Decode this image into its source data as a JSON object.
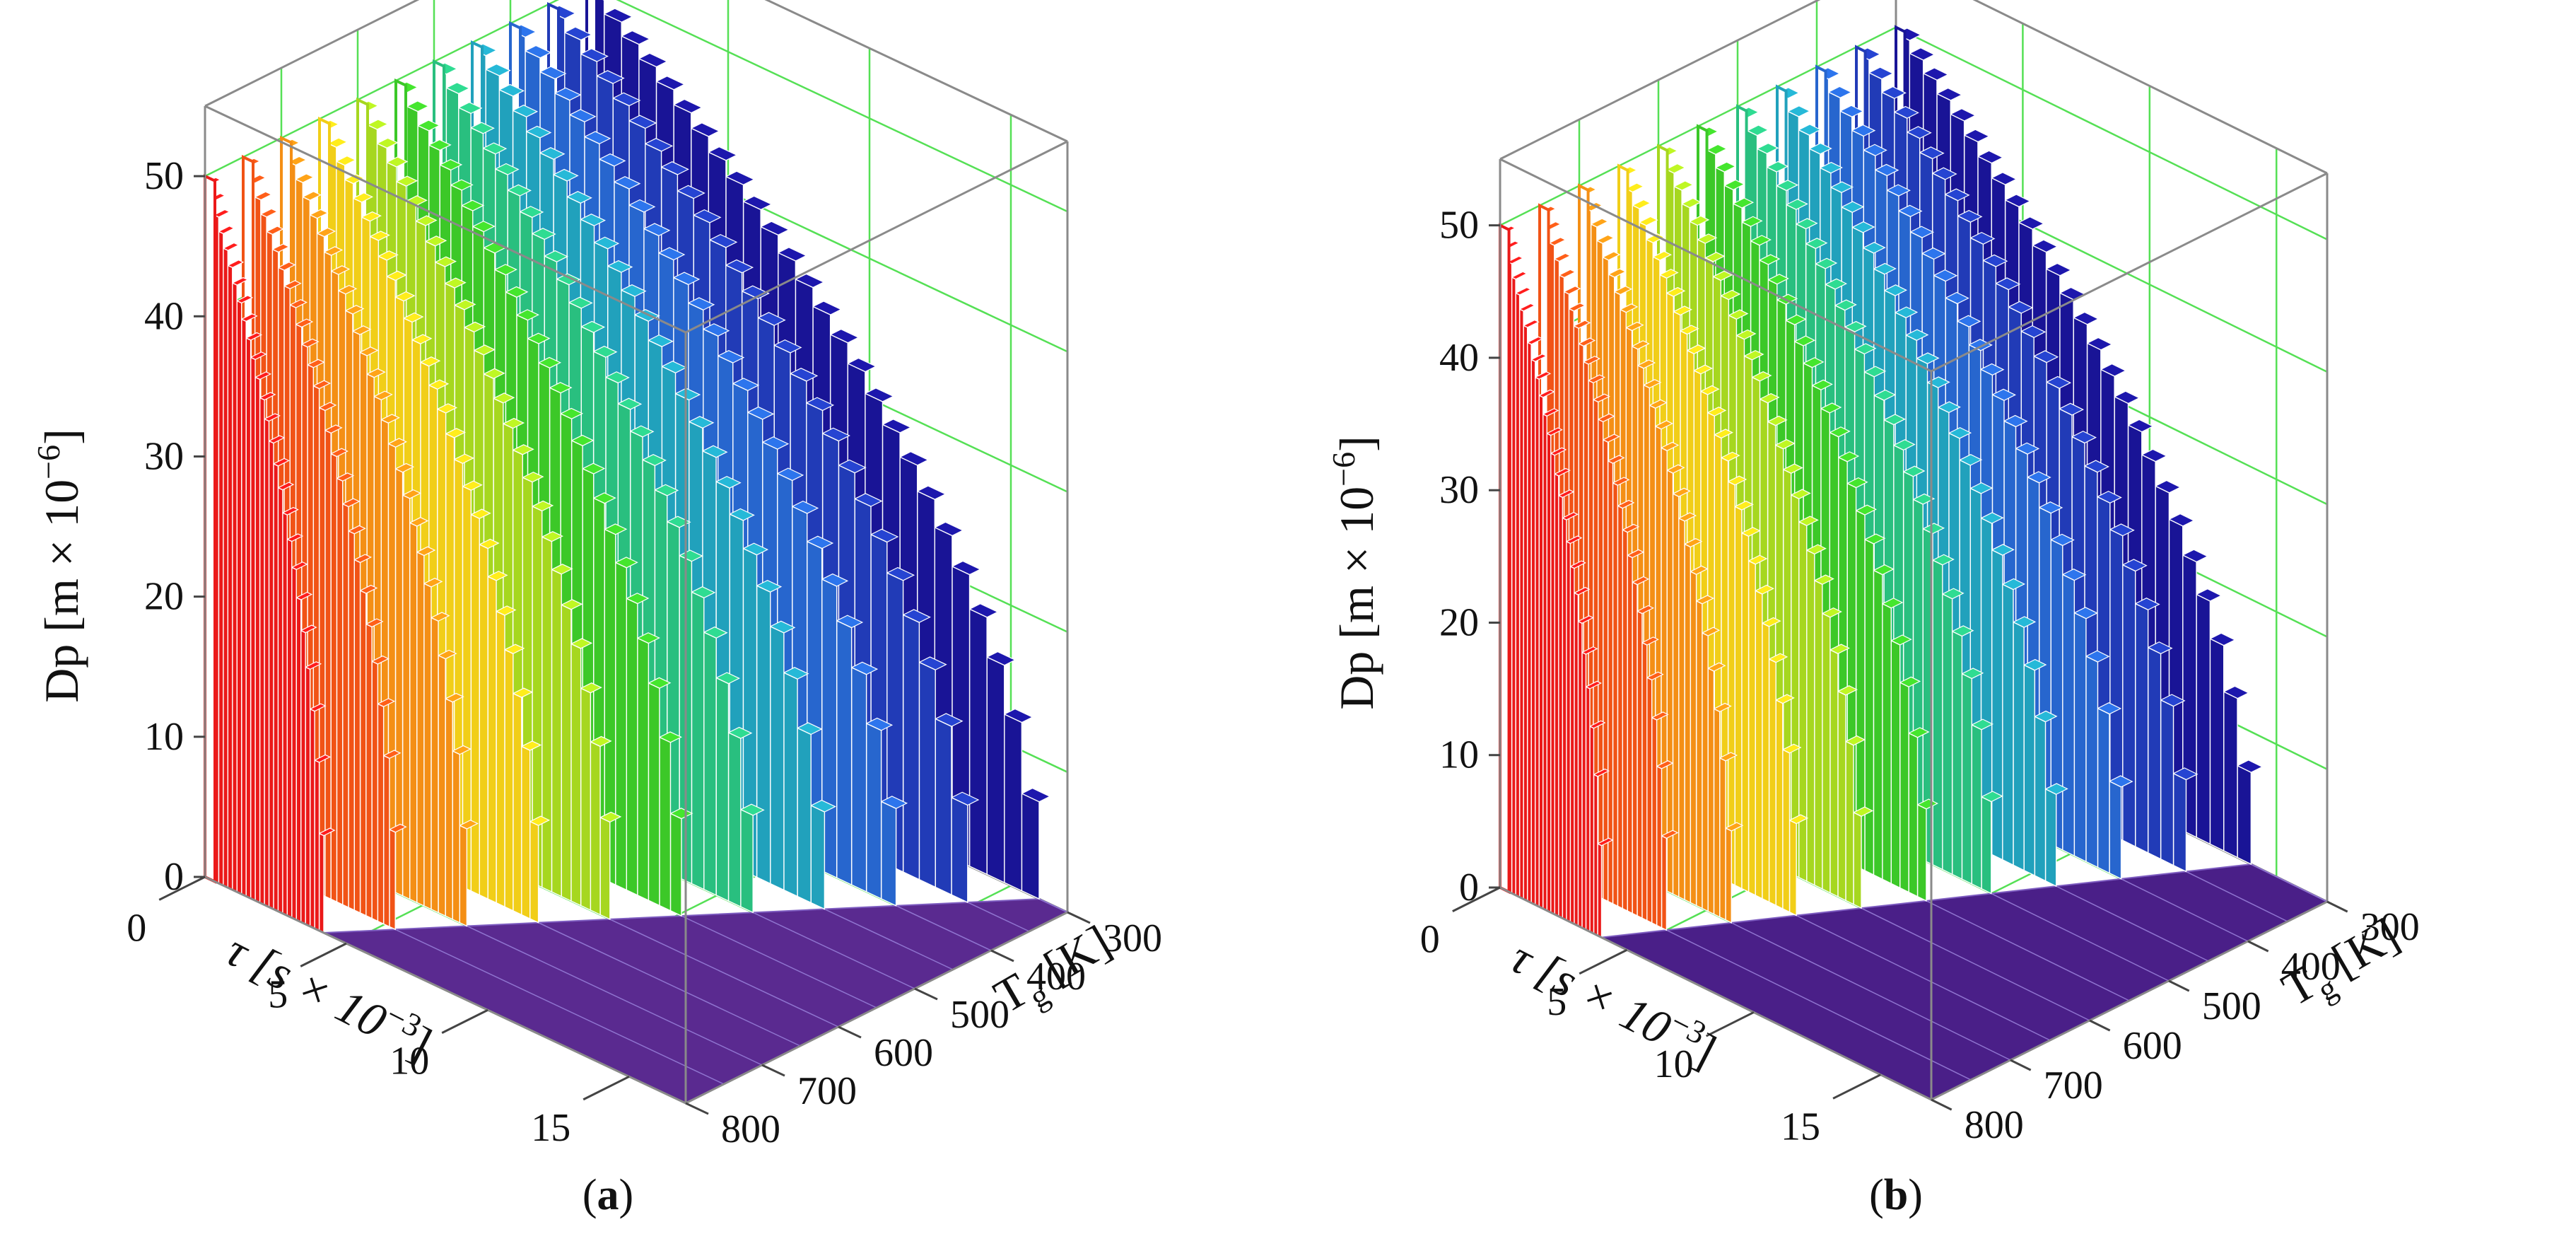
{
  "chart_data": [
    {
      "panel": "a",
      "type": "bar3d",
      "panel_label": {
        "open": "(",
        "letter": "a",
        "close": ")"
      },
      "zlabel": {
        "text": "Dp [m × 10",
        "sup": "−6",
        "close": "]"
      },
      "xlabel": {
        "text": "τ [s × 10",
        "sup": "−3",
        "close": "]"
      },
      "ylabel": {
        "main": "T",
        "sub": "g",
        "unit": " [K]"
      },
      "z_ticks": [
        "0",
        "10",
        "20",
        "30",
        "40",
        "50"
      ],
      "x_ticks": [
        "0",
        "5",
        "10",
        "15"
      ],
      "y_ticks": [
        "300",
        "400",
        "500",
        "600",
        "700",
        "800"
      ],
      "zlim": [
        0,
        55
      ],
      "tau_max_xlim": [
        0,
        17
      ],
      "temperature_range": [
        300,
        800
      ],
      "series_count": 11,
      "initial_diameter": 50,
      "evaporation_time_at_300K": 16.0,
      "evaporation_time_at_800K": 4.2,
      "floor_color": "#5a2a90"
    },
    {
      "panel": "b",
      "type": "bar3d",
      "panel_label": {
        "open": "(",
        "letter": "b",
        "close": ")"
      },
      "zlabel": {
        "text": "Dp [m × 10",
        "sup": "−6",
        "close": "]"
      },
      "xlabel": {
        "text": "τ [s × 10",
        "sup": "−3",
        "close": "]"
      },
      "ylabel": {
        "main": "T",
        "sub": "g",
        "unit": " [K]"
      },
      "z_ticks": [
        "0",
        "10",
        "20",
        "30",
        "40",
        "50"
      ],
      "x_ticks": [
        "0",
        "5",
        "10",
        "15"
      ],
      "y_ticks": [
        "300",
        "400",
        "500",
        "600",
        "700",
        "800"
      ],
      "zlim": [
        0,
        55
      ],
      "tau_max_xlim": [
        0,
        17
      ],
      "temperature_range": [
        300,
        800
      ],
      "series_count": 11,
      "initial_diameter": 50,
      "evaporation_time_at_300K": 14.0,
      "evaporation_time_at_800K": 4.0,
      "floor_color": "#4a1f88"
    }
  ]
}
